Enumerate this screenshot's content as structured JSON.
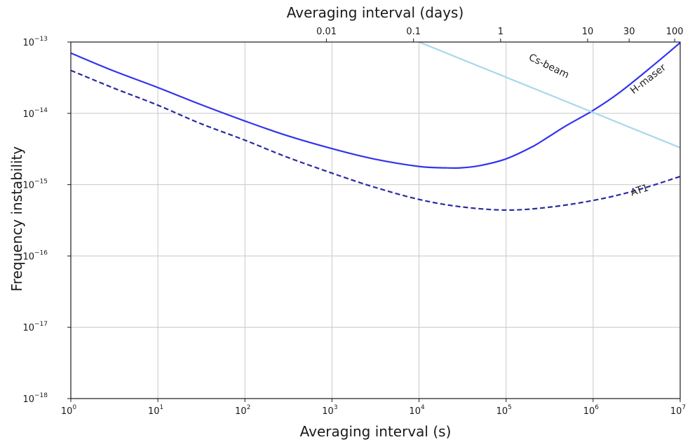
{
  "chart_data": {
    "type": "line",
    "title": "",
    "xlabel": "Averaging interval (s)",
    "ylabel": "Frequency instability",
    "top_xlabel": "Averaging interval (days)",
    "xscale": "log",
    "yscale": "log",
    "xlim": [
      1,
      10000000
    ],
    "ylim": [
      1e-18,
      1e-13
    ],
    "grid": true,
    "x_ticks": [
      {
        "value": 1,
        "base": "10",
        "exp": "0"
      },
      {
        "value": 10,
        "base": "10",
        "exp": "1"
      },
      {
        "value": 100,
        "base": "10",
        "exp": "2"
      },
      {
        "value": 1000,
        "base": "10",
        "exp": "3"
      },
      {
        "value": 10000,
        "base": "10",
        "exp": "4"
      },
      {
        "value": 100000,
        "base": "10",
        "exp": "5"
      },
      {
        "value": 1000000,
        "base": "10",
        "exp": "6"
      },
      {
        "value": 10000000,
        "base": "10",
        "exp": "7"
      }
    ],
    "y_ticks": [
      {
        "value": 1e-18,
        "base": "10",
        "exp": "−18"
      },
      {
        "value": 1e-17,
        "base": "10",
        "exp": "−17"
      },
      {
        "value": 1e-16,
        "base": "10",
        "exp": "−16"
      },
      {
        "value": 1e-15,
        "base": "10",
        "exp": "−15"
      },
      {
        "value": 1e-14,
        "base": "10",
        "exp": "−14"
      },
      {
        "value": 1e-13,
        "base": "10",
        "exp": "−13"
      }
    ],
    "top_ticks": [
      {
        "days": 0.01,
        "label": "0.01"
      },
      {
        "days": 0.1,
        "label": "0.1"
      },
      {
        "days": 1,
        "label": "1"
      },
      {
        "days": 10,
        "label": "10"
      },
      {
        "days": 30,
        "label": "30"
      },
      {
        "days": 100,
        "label": "100"
      }
    ],
    "series": [
      {
        "name": "H-maser",
        "color": "#3333ee",
        "style": "solid",
        "x": [
          1,
          3,
          10,
          30,
          100,
          300,
          1000,
          3000,
          10000,
          20000,
          30000,
          50000,
          100000,
          200000,
          300000,
          500000,
          1000000,
          2000000,
          5000000,
          10000000
        ],
        "y": [
          7e-14,
          4e-14,
          2.3e-14,
          1.35e-14,
          7.8e-15,
          4.9e-15,
          3.2e-15,
          2.3e-15,
          1.8e-15,
          1.72e-15,
          1.72e-15,
          1.85e-15,
          2.3e-15,
          3.4e-15,
          4.6e-15,
          6.8e-15,
          1.1e-14,
          1.95e-14,
          4.8e-14,
          9.8e-14
        ]
      },
      {
        "name": "AT1",
        "color": "#2a2aa0",
        "style": "dashed",
        "x": [
          1,
          3,
          10,
          30,
          100,
          300,
          1000,
          3000,
          10000,
          30000,
          100000,
          300000,
          1000000,
          3000000,
          10000000
        ],
        "y": [
          4e-14,
          2.3e-14,
          1.3e-14,
          7.3e-15,
          4.2e-15,
          2.45e-15,
          1.45e-15,
          9.3e-16,
          6.2e-16,
          4.9e-16,
          4.4e-16,
          4.8e-16,
          6e-16,
          8.2e-16,
          1.3e-15
        ]
      },
      {
        "name": "Cs-beam",
        "color": "#a8d8ea",
        "style": "solid",
        "x": [
          10000,
          10000000
        ],
        "y": [
          1e-13,
          3.3e-15
        ]
      }
    ],
    "annotations": [
      {
        "text": "Cs-beam",
        "x": 300000,
        "y": 4.2e-14,
        "rotate": 26
      },
      {
        "text": "H-maser",
        "x": 4500000,
        "y": 2.8e-14,
        "rotate": -38
      },
      {
        "text": "AT1",
        "x": 3500000,
        "y": 7.6e-16,
        "rotate": -18
      }
    ]
  }
}
